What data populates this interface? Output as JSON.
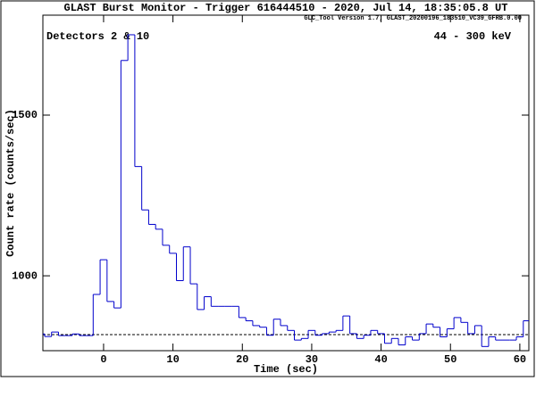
{
  "chart_data": {
    "type": "histogram",
    "title": "GLAST Burst Monitor  -  Trigger 616444510  -  2020, Jul 14, 18:35:05.8 UT",
    "subtitle": "GLC_Tool Version 1.7; GLAST_20200196_183510_VC39_GFRB.0.00",
    "annotations": [
      "Detectors 2 & 10",
      "44 - 300 keV"
    ],
    "xlabel": "Time (sec)",
    "ylabel": "Count rate (counts/sec)",
    "color": "#0000cc",
    "bins": [
      -9.5,
      -8.5,
      -7.5,
      -6.5,
      -5.5,
      -4.5,
      -3.5,
      -2.5,
      -1.5,
      -0.5,
      0.5,
      1.5,
      2.5,
      3.5,
      4.5,
      5.5,
      6.5,
      7.5,
      8.5,
      9.5,
      10.5,
      11.5,
      12.5,
      13.5,
      14.5,
      15.5,
      16.5,
      17.5,
      18.5,
      19.5,
      20.5,
      21.5,
      22.5,
      23.5,
      24.5,
      25.5,
      26.5,
      27.5,
      28.5,
      29.5,
      30.5,
      31.5,
      32.5,
      33.5,
      34.5,
      35.5,
      36.5,
      37.5,
      38.5,
      39.5,
      40.5,
      41.5,
      42.5,
      43.5,
      44.5,
      45.5,
      46.5,
      47.5,
      48.5,
      49.5,
      50.5,
      51.5,
      52.5,
      53.5,
      54.5,
      55.5,
      56.5,
      57.5,
      58.5,
      59.5,
      60.5,
      61.5
    ],
    "counts": [
      819,
      811,
      825,
      814,
      814,
      819,
      814,
      814,
      942,
      1050,
      920,
      900,
      1670,
      1750,
      1340,
      1205,
      1160,
      1145,
      1095,
      1070,
      985,
      1090,
      975,
      895,
      935,
      905,
      905,
      905,
      905,
      870,
      860,
      845,
      840,
      815,
      865,
      845,
      830,
      800,
      805,
      830,
      815,
      820,
      825,
      830,
      875,
      820,
      805,
      815,
      830,
      820,
      790,
      805,
      785,
      810,
      800,
      820,
      850,
      840,
      810,
      835,
      870,
      855,
      820,
      845,
      780,
      810,
      800,
      800,
      800,
      810,
      860
    ],
    "background": 817,
    "xlim": [
      -8.75,
      61.3
    ],
    "xticks": [
      0,
      10,
      20,
      30,
      40,
      50,
      60
    ],
    "ylim": [
      767,
      1811
    ],
    "yticks": [
      1000,
      1500
    ]
  }
}
